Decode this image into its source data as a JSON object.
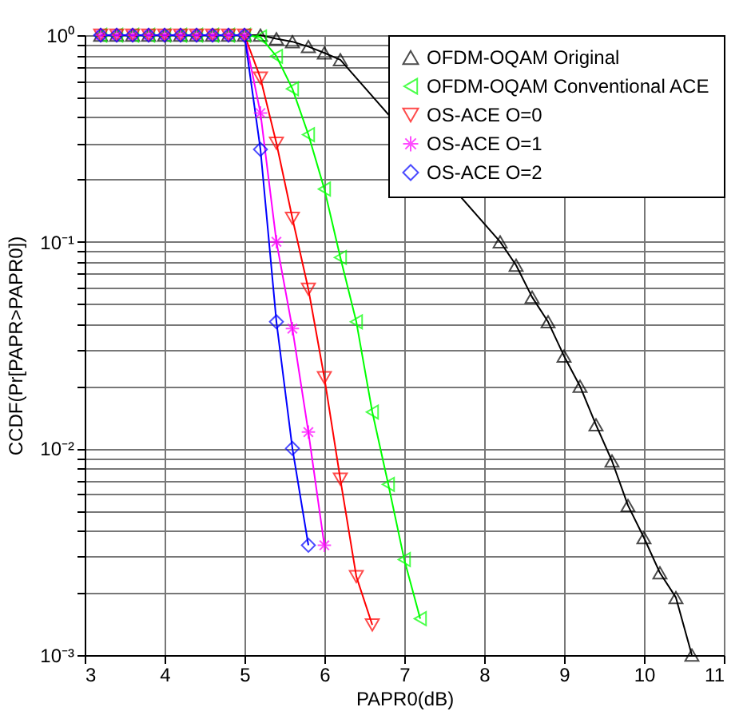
{
  "chart_data": {
    "type": "line",
    "xlabel": "PAPR0(dB)",
    "ylabel": "CCDF(Pr[PAPR>PAPR0])",
    "x": [
      3.2,
      3.4,
      3.6,
      3.8,
      4.0,
      4.2,
      4.4,
      4.6,
      4.8,
      5.0,
      5.2,
      5.4,
      5.6,
      5.8,
      6.0,
      6.2,
      6.4,
      6.6,
      6.8,
      7.0,
      7.2,
      7.4,
      7.6,
      7.8,
      8.0,
      8.2,
      8.4,
      8.6,
      8.8,
      9.0,
      9.2,
      9.4,
      9.6,
      9.8,
      10.0,
      10.2,
      10.4,
      10.6
    ],
    "series": [
      {
        "name": "OFDM-OQAM Original",
        "color": "#000000",
        "marker": "triangle",
        "values": [
          1,
          1,
          1,
          1,
          1,
          1,
          1,
          1,
          1,
          1,
          1,
          0.96,
          0.93,
          0.88,
          0.82,
          0.76,
          null,
          null,
          null,
          null,
          null,
          null,
          null,
          null,
          null,
          0.1,
          0.077,
          0.054,
          0.041,
          0.028,
          0.02,
          0.013,
          0.0087,
          0.0053,
          0.0037,
          0.0025,
          0.0019,
          0.001
        ]
      },
      {
        "name": "OFDM-OQAM Conventional ACE",
        "color": "#00ff00",
        "marker": "triangle",
        "values": [
          1,
          1,
          1,
          1,
          1,
          1,
          1,
          1,
          1,
          1,
          0.98,
          0.79,
          0.55,
          0.33,
          0.18,
          0.084,
          0.041,
          0.015,
          0.0067,
          0.0029,
          0.0015,
          null,
          null,
          null,
          null,
          null,
          null,
          null,
          null,
          null,
          null,
          null,
          null,
          null,
          null,
          null,
          null,
          null
        ]
      },
      {
        "name": "OS-ACE O=0",
        "color": "#ff0000",
        "marker": "triangle",
        "values": [
          1,
          1,
          1,
          1,
          1,
          1,
          1,
          1,
          1,
          1,
          0.62,
          0.3,
          0.13,
          0.059,
          0.022,
          0.0071,
          0.0024,
          0.0014,
          null,
          null,
          null,
          null,
          null,
          null,
          null,
          null,
          null,
          null,
          null,
          null,
          null,
          null,
          null,
          null,
          null,
          null,
          null,
          null
        ]
      },
      {
        "name": "OS-ACE O=1",
        "color": "#ff00ff",
        "marker": "cross",
        "values": [
          1,
          1,
          1,
          1,
          1,
          1,
          1,
          1,
          1,
          1,
          0.42,
          0.1,
          0.038,
          0.012,
          0.0034,
          null,
          null,
          null,
          null,
          null,
          null,
          null,
          null,
          null,
          null,
          null,
          null,
          null,
          null,
          null,
          null,
          null,
          null,
          null,
          null,
          null,
          null,
          null
        ]
      },
      {
        "name": "OS-ACE O=2",
        "color": "#0000ff",
        "marker": "diamond",
        "values": [
          1,
          1,
          1,
          1,
          1,
          1,
          1,
          1,
          1,
          1,
          0.28,
          0.041,
          0.01,
          0.0034,
          null,
          null,
          null,
          null,
          null,
          null,
          null,
          null,
          null,
          null,
          null,
          null,
          null,
          null,
          null,
          null,
          null,
          null,
          null,
          null,
          null,
          null,
          null,
          null
        ]
      }
    ],
    "xlim": [
      3,
      11
    ],
    "xticks": [
      3,
      4,
      5,
      6,
      7,
      8,
      9,
      10,
      11
    ],
    "ylim": [
      0.001,
      1
    ],
    "log": true,
    "yticks": [
      {
        "value": 0.001,
        "label": "10⁻³"
      },
      {
        "value": 0.002,
        "label": null
      },
      {
        "value": 0.003,
        "label": null
      },
      {
        "value": 0.004,
        "label": null
      },
      {
        "value": 0.005,
        "label": null
      },
      {
        "value": 0.006,
        "label": null
      },
      {
        "value": 0.007,
        "label": null
      },
      {
        "value": 0.008,
        "label": null
      },
      {
        "value": 0.009,
        "label": null
      },
      {
        "value": 0.01,
        "label": "10⁻²"
      },
      {
        "value": 0.02,
        "label": null
      },
      {
        "value": 0.03,
        "label": null
      },
      {
        "value": 0.04,
        "label": null
      },
      {
        "value": 0.05,
        "label": null
      },
      {
        "value": 0.06,
        "label": null
      },
      {
        "value": 0.07,
        "label": null
      },
      {
        "value": 0.08,
        "label": null
      },
      {
        "value": 0.09,
        "label": null
      },
      {
        "value": 0.1,
        "label": "10⁻¹"
      },
      {
        "value": 0.2,
        "label": null
      },
      {
        "value": 0.3,
        "label": null
      },
      {
        "value": 0.4,
        "label": null
      },
      {
        "value": 0.5,
        "label": null
      },
      {
        "value": 0.6,
        "label": null
      },
      {
        "value": 0.7,
        "label": null
      },
      {
        "value": 0.8,
        "label": null
      },
      {
        "value": 0.9,
        "label": null
      },
      {
        "value": 1,
        "label": "10⁰"
      }
    ],
    "grid": true,
    "legend": "top right",
    "line_style": "solid"
  }
}
